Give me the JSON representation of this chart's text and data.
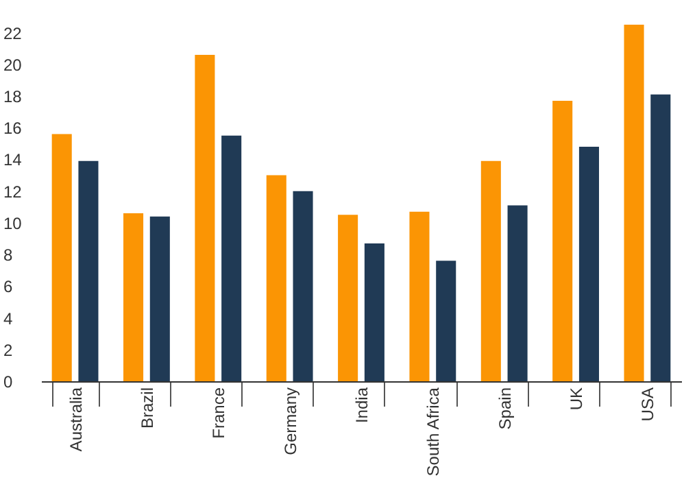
{
  "chart_data": {
    "type": "bar",
    "categories": [
      "Australia",
      "Brazil",
      "France",
      "Germany",
      "India",
      "South Africa",
      "Spain",
      "UK",
      "USA"
    ],
    "series": [
      {
        "color": "#fb9504",
        "values": [
          15.6,
          10.6,
          20.6,
          13.0,
          10.5,
          10.7,
          13.9,
          17.7,
          22.5
        ]
      },
      {
        "color": "#203a55",
        "values": [
          13.9,
          10.4,
          15.5,
          12.0,
          8.7,
          7.6,
          11.1,
          14.8,
          18.1
        ]
      }
    ],
    "ylim": [
      0,
      22.5
    ],
    "yticks": [
      0,
      2,
      4,
      6,
      8,
      10,
      12,
      14,
      16,
      18,
      20,
      22
    ],
    "grid": false,
    "legend": false
  }
}
